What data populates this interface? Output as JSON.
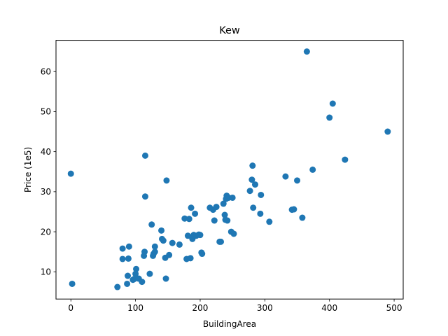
{
  "chart_data": {
    "type": "scatter",
    "title": "Kew",
    "xlabel": "BuildingArea",
    "ylabel": "Price (1e5)",
    "xlim": [
      -23,
      514
    ],
    "ylim": [
      3.2,
      67.8
    ],
    "xticks": [
      0,
      100,
      200,
      300,
      400,
      500
    ],
    "yticks": [
      10,
      20,
      30,
      40,
      50,
      60
    ],
    "grid": false,
    "color": "#1f77b4",
    "series": [
      {
        "x": [
          0,
          2,
          72,
          80,
          80,
          87,
          88,
          89,
          90,
          96,
          98,
          100,
          101,
          105,
          110,
          113,
          114,
          115,
          122,
          125,
          127,
          128,
          130,
          130,
          140,
          141,
          143,
          146,
          147,
          148,
          152,
          157,
          168,
          176,
          179,
          181,
          183,
          185,
          186,
          188,
          190,
          192,
          194,
          198,
          200,
          202,
          203,
          215,
          220,
          222,
          225,
          230,
          232,
          236,
          238,
          239,
          240,
          241,
          242,
          244,
          248,
          250,
          252,
          277,
          280,
          281,
          282,
          285,
          293,
          294,
          307,
          332,
          342,
          345,
          350,
          358,
          374,
          400,
          405,
          424,
          490,
          115,
          365
        ],
        "y": [
          34.5,
          7.0,
          6.2,
          15.8,
          13.2,
          7.0,
          9.0,
          13.3,
          16.3,
          8.0,
          8.2,
          9.5,
          10.7,
          8.3,
          7.5,
          14.0,
          15.0,
          39.0,
          9.5,
          21.8,
          14.0,
          14.5,
          16.3,
          15.0,
          20.3,
          18.2,
          17.8,
          13.5,
          8.3,
          32.8,
          14.2,
          17.2,
          16.8,
          23.3,
          13.2,
          19.0,
          23.2,
          13.4,
          26.0,
          18.2,
          19.2,
          24.5,
          19.0,
          19.3,
          19.2,
          14.8,
          14.5,
          26.0,
          25.5,
          22.8,
          26.2,
          17.5,
          17.5,
          27.0,
          24.2,
          23.0,
          28.2,
          29.0,
          22.8,
          28.5,
          20.0,
          28.5,
          19.5,
          30.2,
          33.0,
          36.5,
          26.0,
          31.8,
          24.5,
          29.2,
          22.5,
          33.8,
          25.5,
          25.6,
          32.8,
          23.5,
          35.5,
          48.5,
          52.0,
          38.0,
          45.0,
          28.8,
          65.0
        ]
      }
    ]
  }
}
